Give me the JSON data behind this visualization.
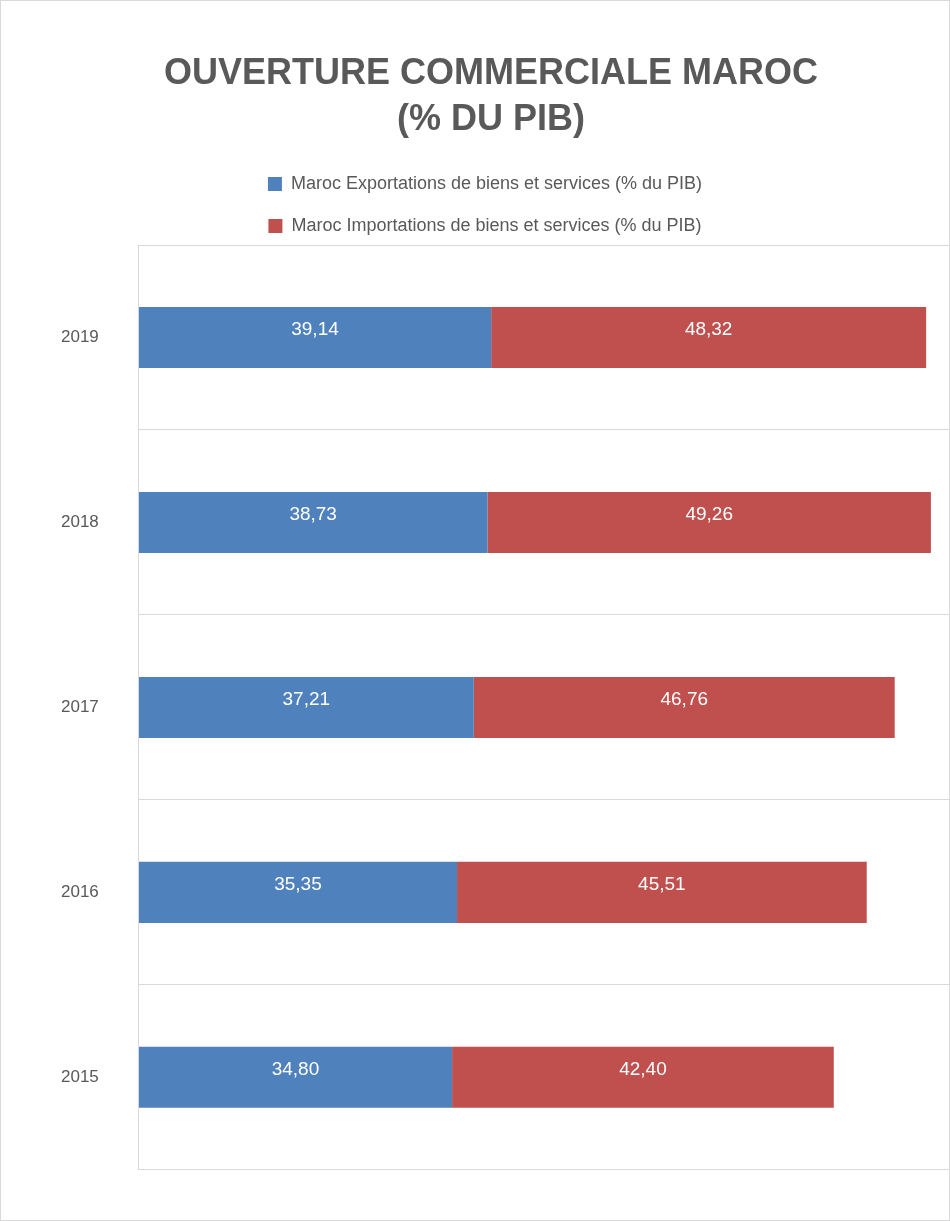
{
  "chart_data": {
    "type": "bar",
    "orientation": "horizontal",
    "stacked": true,
    "title": "OUVERTURE COMMERCIALE MAROC (% DU PIB)",
    "categories": [
      "2019",
      "2018",
      "2017",
      "2016",
      "2015"
    ],
    "series": [
      {
        "name": "Maroc Exportations de biens et services (% du PIB)",
        "color": "#4f81bd",
        "values": [
          39.14,
          38.73,
          37.21,
          35.35,
          34.8
        ],
        "value_labels": [
          "39,14",
          "38,73",
          "37,21",
          "35,35",
          "34,80"
        ]
      },
      {
        "name": "Maroc Importations de biens et services (% du PIB)",
        "color": "#c0504d",
        "values": [
          48.32,
          49.26,
          46.76,
          45.51,
          42.4
        ],
        "value_labels": [
          "48,32",
          "49,26",
          "46,76",
          "45,51",
          "42,40"
        ]
      }
    ],
    "grid": "y",
    "legend": "top"
  }
}
